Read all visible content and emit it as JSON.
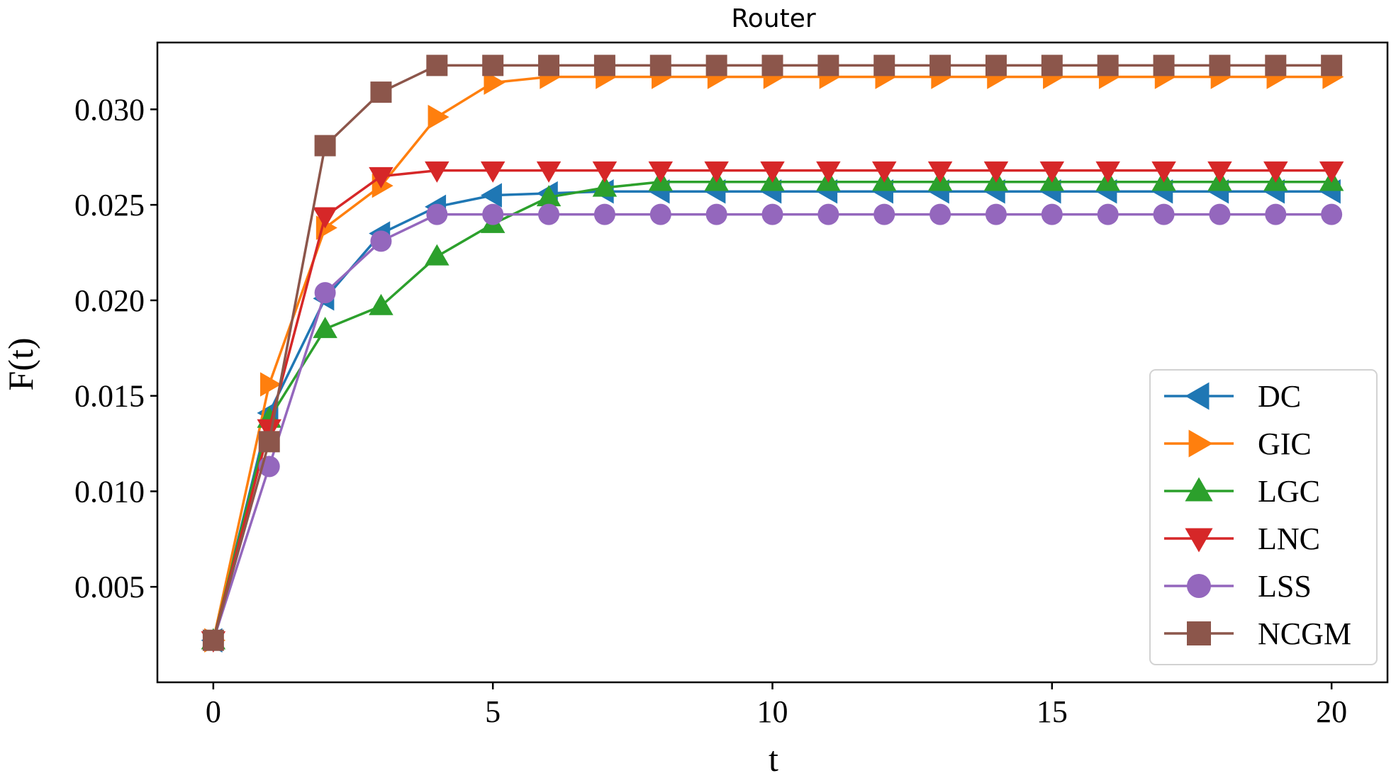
{
  "chart_data": {
    "type": "line",
    "title": "Router",
    "xlabel": "t",
    "ylabel": "F(t)",
    "xlim": [
      -1,
      21
    ],
    "ylim": [
      0,
      0.0335
    ],
    "xticks": [
      0,
      5,
      10,
      15,
      20
    ],
    "xtick_labels": [
      "0",
      "5",
      "10",
      "15",
      "20"
    ],
    "yticks": [
      0.005,
      0.01,
      0.015,
      0.02,
      0.025,
      0.03
    ],
    "ytick_labels": [
      "0.005",
      "0.010",
      "0.015",
      "0.020",
      "0.025",
      "0.030"
    ],
    "grid": false,
    "legend_position": "lower-right",
    "x": [
      0,
      1,
      2,
      3,
      4,
      5,
      6,
      7,
      8,
      9,
      10,
      11,
      12,
      13,
      14,
      15,
      16,
      17,
      18,
      19,
      20
    ],
    "series": [
      {
        "name": "DC",
        "color": "#1f77b4",
        "marker": "triangle-left",
        "values": [
          0.0022,
          0.0141,
          0.0201,
          0.0235,
          0.0249,
          0.0255,
          0.0256,
          0.0257,
          0.0257,
          0.0257,
          0.0257,
          0.0257,
          0.0257,
          0.0257,
          0.0257,
          0.0257,
          0.0257,
          0.0257,
          0.0257,
          0.0257,
          0.0257
        ]
      },
      {
        "name": "GIC",
        "color": "#ff7f0e",
        "marker": "triangle-right",
        "values": [
          0.0022,
          0.0156,
          0.0238,
          0.026,
          0.0296,
          0.0314,
          0.0317,
          0.0317,
          0.0317,
          0.0317,
          0.0317,
          0.0317,
          0.0317,
          0.0317,
          0.0317,
          0.0317,
          0.0317,
          0.0317,
          0.0317,
          0.0317,
          0.0317
        ]
      },
      {
        "name": "LGC",
        "color": "#2ca02c",
        "marker": "triangle-up",
        "values": [
          0.0022,
          0.0138,
          0.0185,
          0.0197,
          0.0223,
          0.024,
          0.0254,
          0.0259,
          0.0262,
          0.0262,
          0.0262,
          0.0262,
          0.0262,
          0.0262,
          0.0262,
          0.0262,
          0.0262,
          0.0262,
          0.0262,
          0.0262,
          0.0262
        ]
      },
      {
        "name": "LNC",
        "color": "#d62728",
        "marker": "triangle-down",
        "values": [
          0.0022,
          0.0133,
          0.0244,
          0.0265,
          0.0268,
          0.0268,
          0.0268,
          0.0268,
          0.0268,
          0.0268,
          0.0268,
          0.0268,
          0.0268,
          0.0268,
          0.0268,
          0.0268,
          0.0268,
          0.0268,
          0.0268,
          0.0268,
          0.0268
        ]
      },
      {
        "name": "LSS",
        "color": "#9467bd",
        "marker": "circle",
        "values": [
          0.0022,
          0.0113,
          0.0204,
          0.0231,
          0.0245,
          0.0245,
          0.0245,
          0.0245,
          0.0245,
          0.0245,
          0.0245,
          0.0245,
          0.0245,
          0.0245,
          0.0245,
          0.0245,
          0.0245,
          0.0245,
          0.0245,
          0.0245,
          0.0245
        ]
      },
      {
        "name": "NCGM",
        "color": "#8c564b",
        "marker": "square",
        "values": [
          0.0022,
          0.0126,
          0.0281,
          0.0309,
          0.0323,
          0.0323,
          0.0323,
          0.0323,
          0.0323,
          0.0323,
          0.0323,
          0.0323,
          0.0323,
          0.0323,
          0.0323,
          0.0323,
          0.0323,
          0.0323,
          0.0323,
          0.0323,
          0.0323
        ]
      }
    ]
  }
}
